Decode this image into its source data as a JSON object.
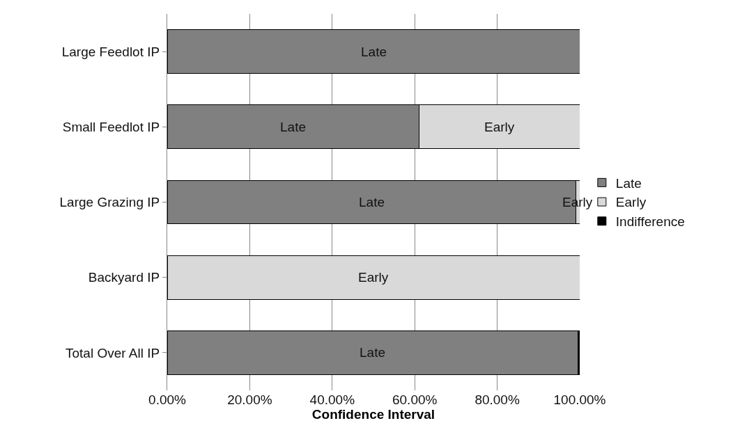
{
  "chart_data": {
    "type": "bar",
    "orientation": "horizontal",
    "stacked": true,
    "xlabel": "Confidence Interval",
    "categories": [
      "Large Feedlot IP",
      "Small Feedlot IP",
      "Large Grazing IP",
      "Backyard IP",
      "Total Over All IP"
    ],
    "series": [
      {
        "name": "Late",
        "color": "#808080",
        "values": [
          100,
          61,
          99,
          0,
          99.5
        ],
        "value_labels": [
          "Late",
          "Late",
          "Late",
          null,
          "Late"
        ]
      },
      {
        "name": "Early",
        "color": "#d9d9d9",
        "values": [
          0,
          39,
          1,
          100,
          0
        ],
        "value_labels": [
          null,
          "Early",
          "Early",
          "Early",
          null
        ]
      },
      {
        "name": "Indifference",
        "color": "#000000",
        "values": [
          0,
          0,
          0,
          0,
          0.5
        ]
      }
    ],
    "xlim": [
      0,
      100
    ],
    "xticks": [
      {
        "value": 0,
        "label": "0.00%"
      },
      {
        "value": 20,
        "label": "20.00%"
      },
      {
        "value": 40,
        "label": "40.00%"
      },
      {
        "value": 60,
        "label": "60.00%"
      },
      {
        "value": 80,
        "label": "80.00%"
      },
      {
        "value": 100,
        "label": "100.00%"
      }
    ],
    "grid": "x",
    "legend": "right"
  }
}
